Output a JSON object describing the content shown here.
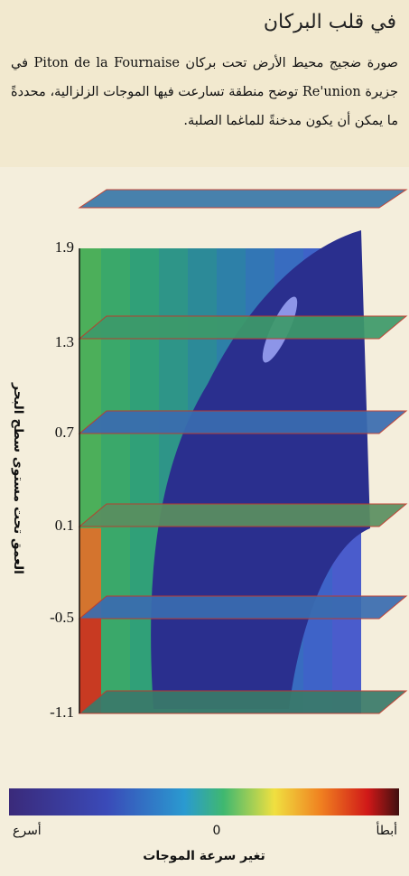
{
  "header": {
    "title": "في قلب البركان",
    "caption": "صورة ضجيج محيط الأرض تحت بركان Piton de la Fournaise في جزيرة Re'union توضح منطقة تسارعت فيها الموجات الزلزالية، محددةً ما يمكن أن يكون مدخنةً للماغما الصلبة."
  },
  "figure": {
    "axis_label": "العمق تحت مستوى سطح البحر",
    "depth_ticks": [
      "1.9",
      "1.3",
      "0.7",
      "0.1",
      "-0.5",
      "-1.1"
    ],
    "colorbar": {
      "left_label": "أسرع",
      "middle_label": "0",
      "right_label": "أبطأ",
      "title": "تغير سرعة الموجات"
    }
  }
}
